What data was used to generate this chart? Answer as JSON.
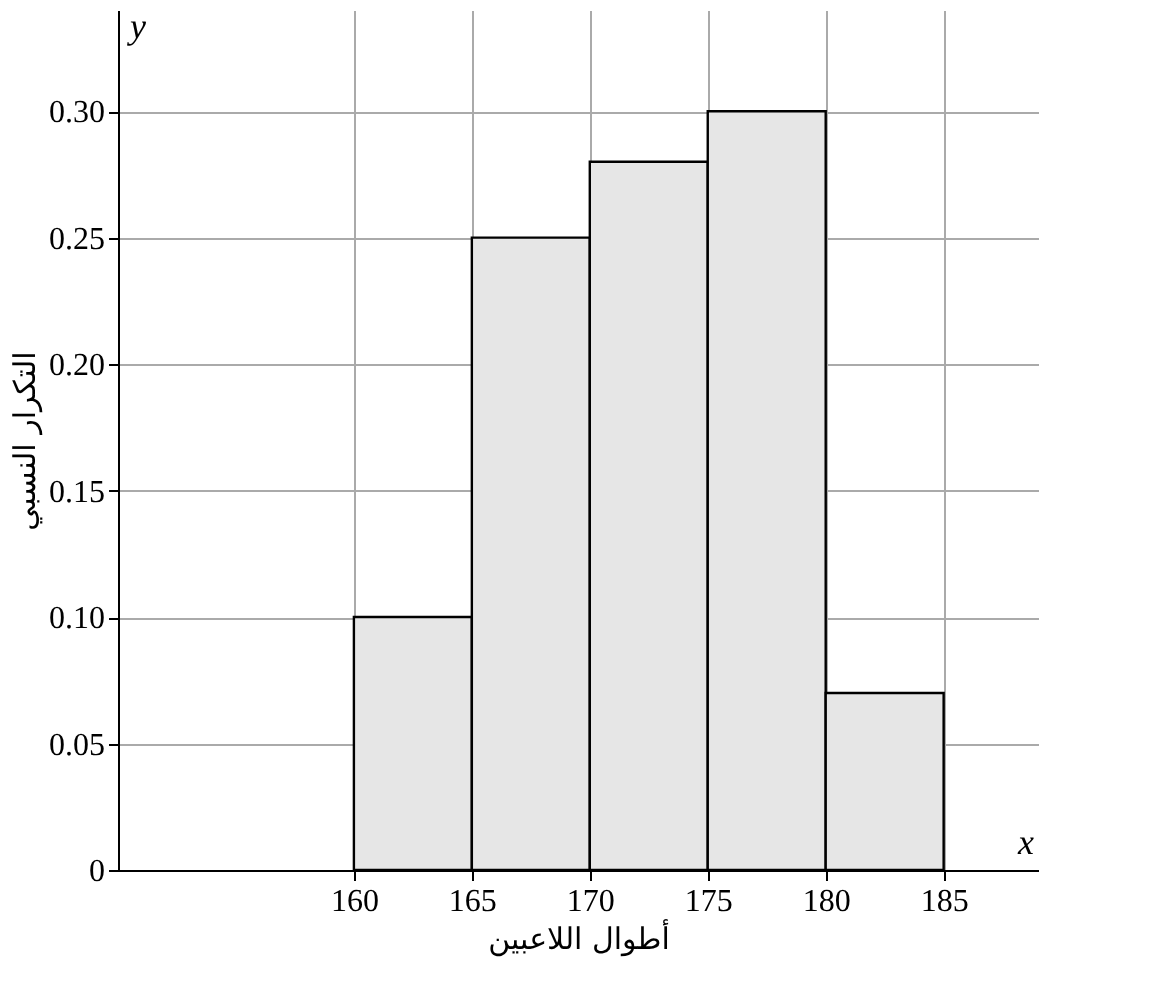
{
  "chart_data": {
    "type": "histogram",
    "xlabel": "أطوال اللاعبين",
    "ylabel": "التكرار النسبي",
    "bins": [
      160,
      165,
      170,
      175,
      180,
      185
    ],
    "values": [
      0.1,
      0.25,
      0.28,
      0.3,
      0.07
    ],
    "color": "#e6e6e6",
    "xlim": [
      150,
      189
    ],
    "ylim": [
      0,
      0.34
    ],
    "xticks": [
      160,
      165,
      170,
      175,
      180,
      185
    ],
    "yticks": [
      0,
      {
        "value": 0.05,
        "label": "0.05"
      },
      {
        "value": 0.1,
        "label": "0.10"
      },
      {
        "value": 0.15,
        "label": "0.15"
      },
      {
        "value": 0.2,
        "label": "0.20"
      },
      {
        "value": 0.25,
        "label": "0.25"
      },
      {
        "value": 0.3,
        "label": "0.30"
      }
    ],
    "grid": true,
    "annotations": [
      "x",
      "y"
    ]
  }
}
